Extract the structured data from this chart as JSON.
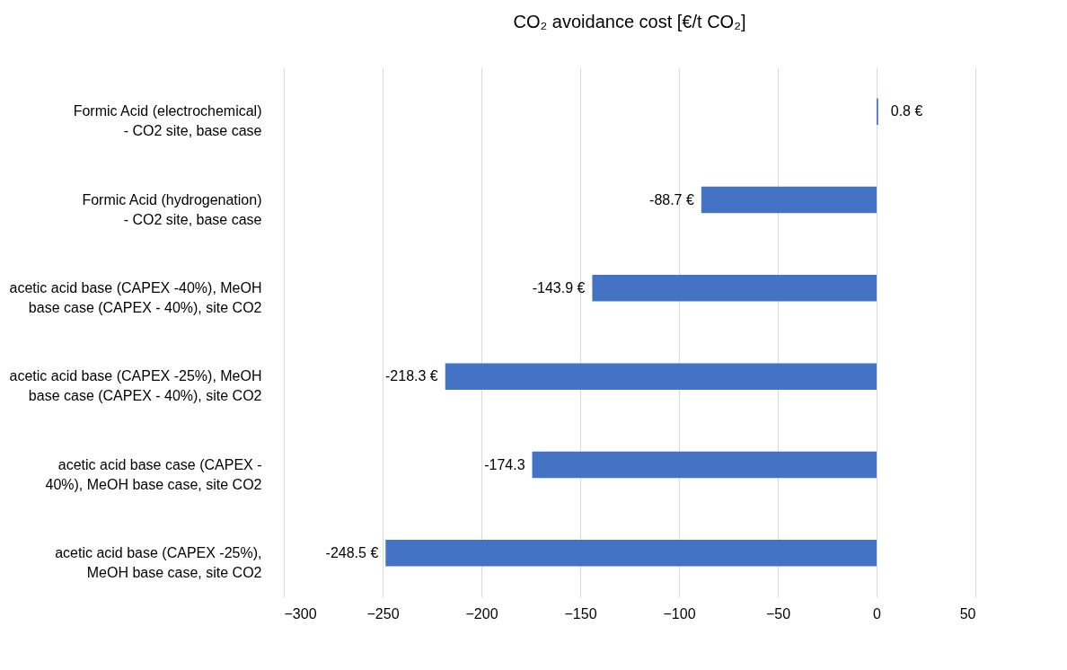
{
  "chart_data": {
    "type": "bar",
    "orientation": "horizontal",
    "title": "CO₂ avoidance cost [€/t CO₂]",
    "categories": [
      "Formic Acid (electrochemical) - CO2 site, base case",
      "Formic Acid (hydrogenation) - CO2 site, base case",
      "acetic acid base (CAPEX -40%), MeOH base case (CAPEX - 40%), site CO2",
      "acetic acid base (CAPEX -25%), MeOH base case (CAPEX - 40%), site CO2",
      "acetic acid base case (CAPEX - 40%), MeOH base case, site CO2",
      "acetic acid base (CAPEX -25%), MeOH base case, site CO2"
    ],
    "values": [
      0.8,
      -88.7,
      -143.9,
      -218.3,
      -174.3,
      -248.5
    ],
    "value_labels": [
      "0.8 €",
      "-88.7 €",
      "-143.9 €",
      "-218.3 €",
      "-174.3",
      "-248.5 €"
    ],
    "color": "#4472c4",
    "xlim": [
      -300,
      50
    ],
    "xticks": [
      -300,
      -250,
      -200,
      -150,
      -100,
      -50,
      0,
      50
    ],
    "grid": "x"
  }
}
